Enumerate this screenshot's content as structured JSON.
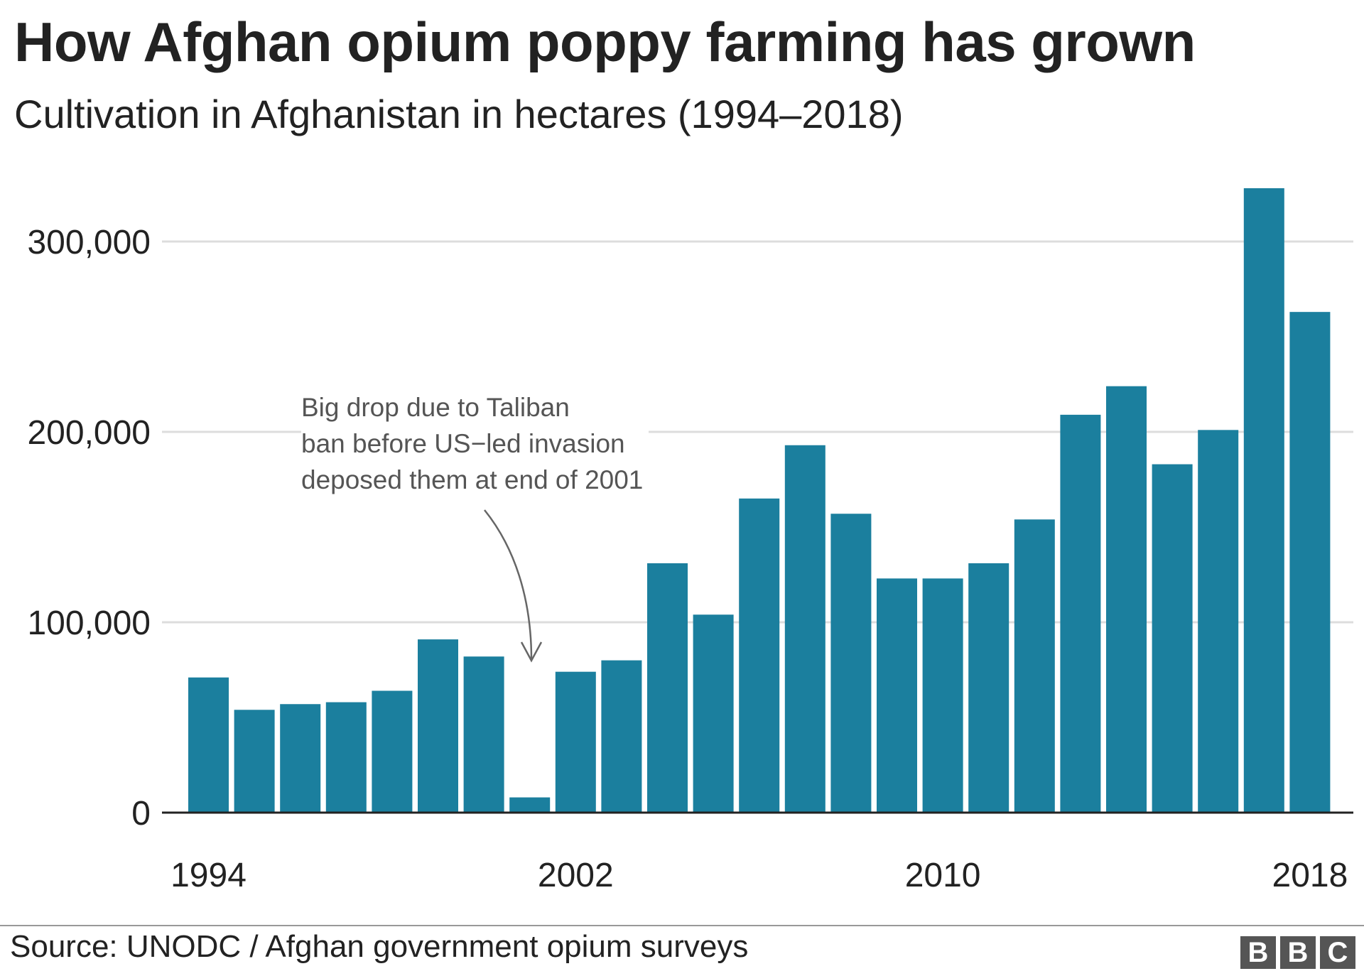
{
  "header": {
    "title": "How Afghan opium poppy farming has grown",
    "subtitle": "Cultivation in Afghanistan in hectares (1994–2018)"
  },
  "annotation": {
    "lines": [
      "Big drop due to Taliban",
      "ban before US−led invasion",
      "deposed them at end of 2001"
    ]
  },
  "footer": {
    "source": "Source: UNODC / Afghan government opium surveys",
    "logo_letters": [
      "B",
      "B",
      "C"
    ]
  },
  "colors": {
    "bar": "#1b7f9e",
    "gridline": "#dddddd",
    "axis": "#222222",
    "annotation": "#555555",
    "logo": "#555555"
  },
  "chart_data": {
    "type": "bar",
    "title": "How Afghan opium poppy farming has grown",
    "subtitle": "Cultivation in Afghanistan in hectares (1994–2018)",
    "xlabel": "",
    "ylabel": "",
    "categories": [
      "1994",
      "1995",
      "1996",
      "1997",
      "1998",
      "1999",
      "2000",
      "2001",
      "2002",
      "2003",
      "2004",
      "2005",
      "2006",
      "2007",
      "2008",
      "2009",
      "2010",
      "2011",
      "2012",
      "2013",
      "2014",
      "2015",
      "2016",
      "2017",
      "2018"
    ],
    "values": [
      71000,
      54000,
      57000,
      58000,
      64000,
      91000,
      82000,
      8000,
      74000,
      80000,
      131000,
      104000,
      165000,
      193000,
      157000,
      123000,
      123000,
      131000,
      154000,
      209000,
      224000,
      183000,
      201000,
      328000,
      263000
    ],
    "ylim": [
      0,
      330000
    ],
    "yticks": [
      0,
      100000,
      200000,
      300000
    ],
    "ytick_labels": [
      "0",
      "100,000",
      "200,000",
      "300,000"
    ],
    "xtick_labels": [
      "1994",
      "2002",
      "2010",
      "2018"
    ],
    "grid": true,
    "legend": "none"
  }
}
